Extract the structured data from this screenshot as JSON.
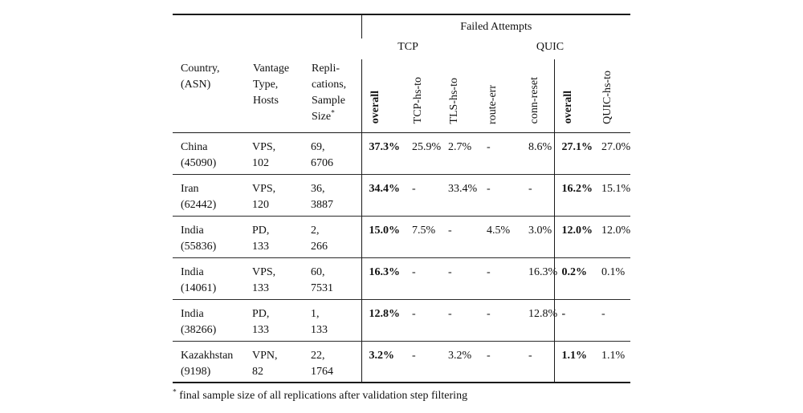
{
  "page": {
    "background_color": "#ffffff",
    "text_color": "#111111",
    "rule_color": "#1a1a1a"
  },
  "table": {
    "header": {
      "failed_attempts": "Failed Attempts",
      "tcp_group": "TCP",
      "quic_group": "QUIC",
      "country_lines": [
        "Country,",
        "(ASN)"
      ],
      "vantage_lines": [
        "Vantage",
        "Type,",
        "Hosts"
      ],
      "replications_lines": [
        "Repli-",
        "cations,",
        "Sample"
      ],
      "replications_last_line": "Size",
      "rotated": [
        "overall",
        "TCP-hs-to",
        "TLS-hs-to",
        "route-err",
        "conn-reset",
        "overall",
        "QUIC-hs-to"
      ]
    },
    "rows": [
      {
        "country": "China",
        "asn": "(45090)",
        "vantage": "VPS,",
        "hosts": "102",
        "replications": "69,",
        "sample": "6706",
        "tcp_overall": "37.3%",
        "tcp_hs_to": "25.9%",
        "tls_hs_to": "2.7%",
        "route_err": "-",
        "conn_reset": "8.6%",
        "quic_overall": "27.1%",
        "quic_hs_to": "27.0%"
      },
      {
        "country": "Iran",
        "asn": "(62442)",
        "vantage": "VPS,",
        "hosts": "120",
        "replications": "36,",
        "sample": "3887",
        "tcp_overall": "34.4%",
        "tcp_hs_to": "-",
        "tls_hs_to": "33.4%",
        "route_err": "-",
        "conn_reset": "-",
        "quic_overall": "16.2%",
        "quic_hs_to": "15.1%"
      },
      {
        "country": "India",
        "asn": "(55836)",
        "vantage": "PD,",
        "hosts": "133",
        "replications": "2,",
        "sample": "266",
        "tcp_overall": "15.0%",
        "tcp_hs_to": "7.5%",
        "tls_hs_to": "-",
        "route_err": "4.5%",
        "conn_reset": "3.0%",
        "quic_overall": "12.0%",
        "quic_hs_to": "12.0%"
      },
      {
        "country": "India",
        "asn": "(14061)",
        "vantage": "VPS,",
        "hosts": "133",
        "replications": "60,",
        "sample": "7531",
        "tcp_overall": "16.3%",
        "tcp_hs_to": "-",
        "tls_hs_to": "-",
        "route_err": "-",
        "conn_reset": "16.3%",
        "quic_overall": "0.2%",
        "quic_hs_to": "0.1%"
      },
      {
        "country": "India",
        "asn": "(38266)",
        "vantage": "PD,",
        "hosts": "133",
        "replications": "1,",
        "sample": "133",
        "tcp_overall": "12.8%",
        "tcp_hs_to": "-",
        "tls_hs_to": "-",
        "route_err": "-",
        "conn_reset": "12.8%",
        "quic_overall": "-",
        "quic_hs_to": "-"
      },
      {
        "country": "Kazakhstan",
        "asn": "(9198)",
        "vantage": "VPN,",
        "hosts": "82",
        "replications": "22,",
        "sample": "1764",
        "tcp_overall": "3.2%",
        "tcp_hs_to": "-",
        "tls_hs_to": "3.2%",
        "route_err": "-",
        "conn_reset": "-",
        "quic_overall": "1.1%",
        "quic_hs_to": "1.1%"
      }
    ],
    "footnote_marker": "*",
    "footnote": "final sample size of all replications after validation step filtering"
  }
}
